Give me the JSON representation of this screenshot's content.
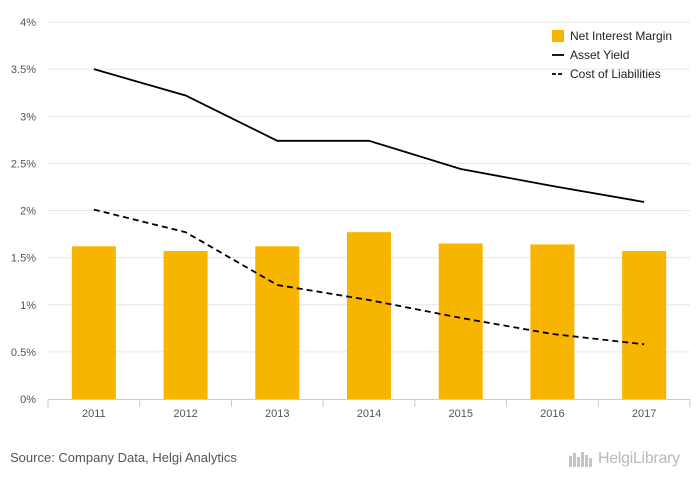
{
  "chart_data": {
    "type": "bar",
    "categories": [
      "2011",
      "2012",
      "2013",
      "2014",
      "2015",
      "2016",
      "2017"
    ],
    "series": [
      {
        "name": "Net Interest Margin",
        "kind": "bar",
        "style": "solid",
        "color": "#f7b500",
        "values": [
          1.62,
          1.57,
          1.62,
          1.77,
          1.65,
          1.64,
          1.57
        ]
      },
      {
        "name": "Asset Yield",
        "kind": "line",
        "style": "solid",
        "color": "#000000",
        "values": [
          3.5,
          3.22,
          2.74,
          2.74,
          2.44,
          2.26,
          2.09
        ]
      },
      {
        "name": "Cost of Liabilities",
        "kind": "line",
        "style": "dashed",
        "color": "#000000",
        "values": [
          2.01,
          1.77,
          1.21,
          1.05,
          0.86,
          0.69,
          0.58
        ]
      }
    ],
    "ylim": [
      0,
      4
    ],
    "yticks": [
      0,
      0.5,
      1,
      1.5,
      2,
      2.5,
      3,
      3.5,
      4
    ],
    "ytick_labels": [
      "0%",
      "0.5%",
      "1%",
      "1.5%",
      "2%",
      "2.5%",
      "3%",
      "3.5%",
      "4%"
    ],
    "grid": true,
    "legend_position": "top-right",
    "title": "",
    "xlabel": "",
    "ylabel": ""
  },
  "footer": {
    "source": "Source: Company Data, Helgi Analytics",
    "brand": "HelgiLibrary"
  },
  "colors": {
    "bar": "#f7b500",
    "line": "#000000",
    "grid": "#e6e6e6",
    "axis": "#cccccc"
  }
}
